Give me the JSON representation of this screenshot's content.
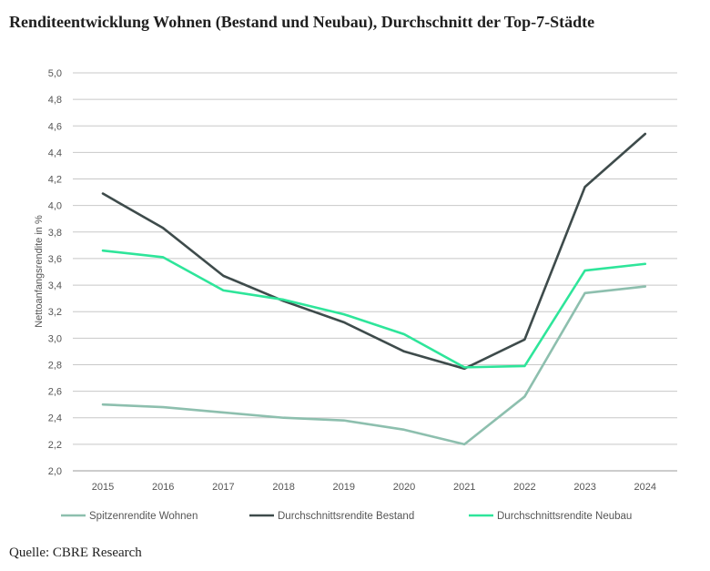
{
  "title": "Renditeentwicklung Wohnen (Bestand und Neubau), Durchschnitt der Top-7-Städte",
  "source": "Quelle: CBRE Research",
  "chart_data": {
    "type": "line",
    "title": "Renditeentwicklung Wohnen (Bestand und Neubau), Durchschnitt der Top-7-Städte",
    "xlabel": "",
    "ylabel": "Nettoanfangsrendite in %",
    "categories": [
      "2015",
      "2016",
      "2017",
      "2018",
      "2019",
      "2020",
      "2021",
      "2022",
      "2023",
      "2024"
    ],
    "ylim": [
      2.0,
      5.0
    ],
    "yticks": [
      "2,0",
      "2,2",
      "2,4",
      "2,6",
      "2,8",
      "3,0",
      "3,2",
      "3,4",
      "3,6",
      "3,8",
      "4,0",
      "4,2",
      "4,4",
      "4,6",
      "4,8",
      "5,0"
    ],
    "grid": true,
    "legend_position": "bottom",
    "series": [
      {
        "name": "Spitzenrendite Wohnen",
        "color": "#8dbfae",
        "values": [
          2.5,
          2.48,
          2.44,
          2.4,
          2.38,
          2.31,
          2.2,
          2.56,
          3.34,
          3.39
        ]
      },
      {
        "name": "Durchschnittsrendite Bestand",
        "color": "#3e4b4b",
        "values": [
          4.09,
          3.83,
          3.47,
          3.28,
          3.12,
          2.9,
          2.77,
          2.99,
          4.14,
          4.54
        ]
      },
      {
        "name": "Durchschnittsrendite Neubau",
        "color": "#2ee59a",
        "values": [
          3.66,
          3.61,
          3.36,
          3.29,
          3.18,
          3.03,
          2.78,
          2.79,
          3.51,
          3.56
        ]
      }
    ]
  }
}
